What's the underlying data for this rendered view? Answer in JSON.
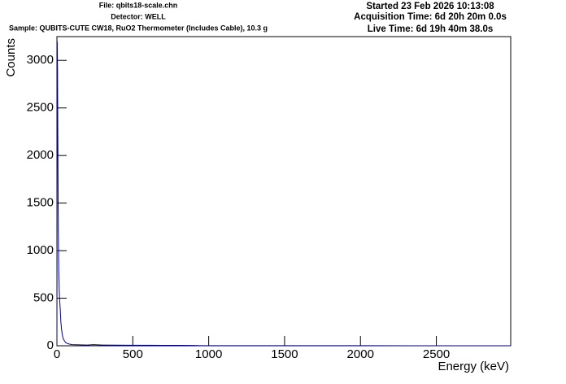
{
  "chart_data": {
    "type": "line",
    "header_left": [
      "File: qbits18-scale.chn",
      "Detector: WELL",
      "Sample: QUBITS-CUTE CW18, RuO2 Thermometer (Includes Cable), 10.3 g"
    ],
    "header_right": [
      "Started 23 Feb 2026 10:13:08",
      "Acquisition Time: 6d 20h 20m 0.0s",
      "Live Time: 6d 19h 40m 38.0s"
    ],
    "xlabel": "Energy (keV)",
    "ylabel": "Counts",
    "x": [
      0,
      2,
      4,
      6,
      8,
      10,
      12,
      15,
      18,
      22,
      26,
      30,
      35,
      40,
      50,
      60,
      80,
      100,
      150,
      200,
      240,
      300,
      400,
      500,
      600,
      700,
      800,
      900,
      950,
      1000,
      1200,
      1500,
      2000,
      2500,
      2990
    ],
    "series": [
      {
        "color": "#000080",
        "values": [
          0,
          3200,
          2900,
          2200,
          1500,
          1100,
          800,
          600,
          480,
          380,
          250,
          180,
          120,
          80,
          50,
          30,
          18,
          12,
          10,
          8,
          12,
          8,
          6,
          5,
          5,
          4,
          4,
          3,
          1,
          1,
          1,
          1,
          1,
          0,
          0
        ]
      }
    ],
    "xlim": [
      0,
      2990
    ],
    "xticks": [
      0,
      500,
      1000,
      1500,
      2000,
      2500
    ],
    "ylim": [
      0,
      3250
    ],
    "yticks": [
      0,
      500,
      1000,
      1500,
      2000,
      2500,
      3000
    ]
  }
}
